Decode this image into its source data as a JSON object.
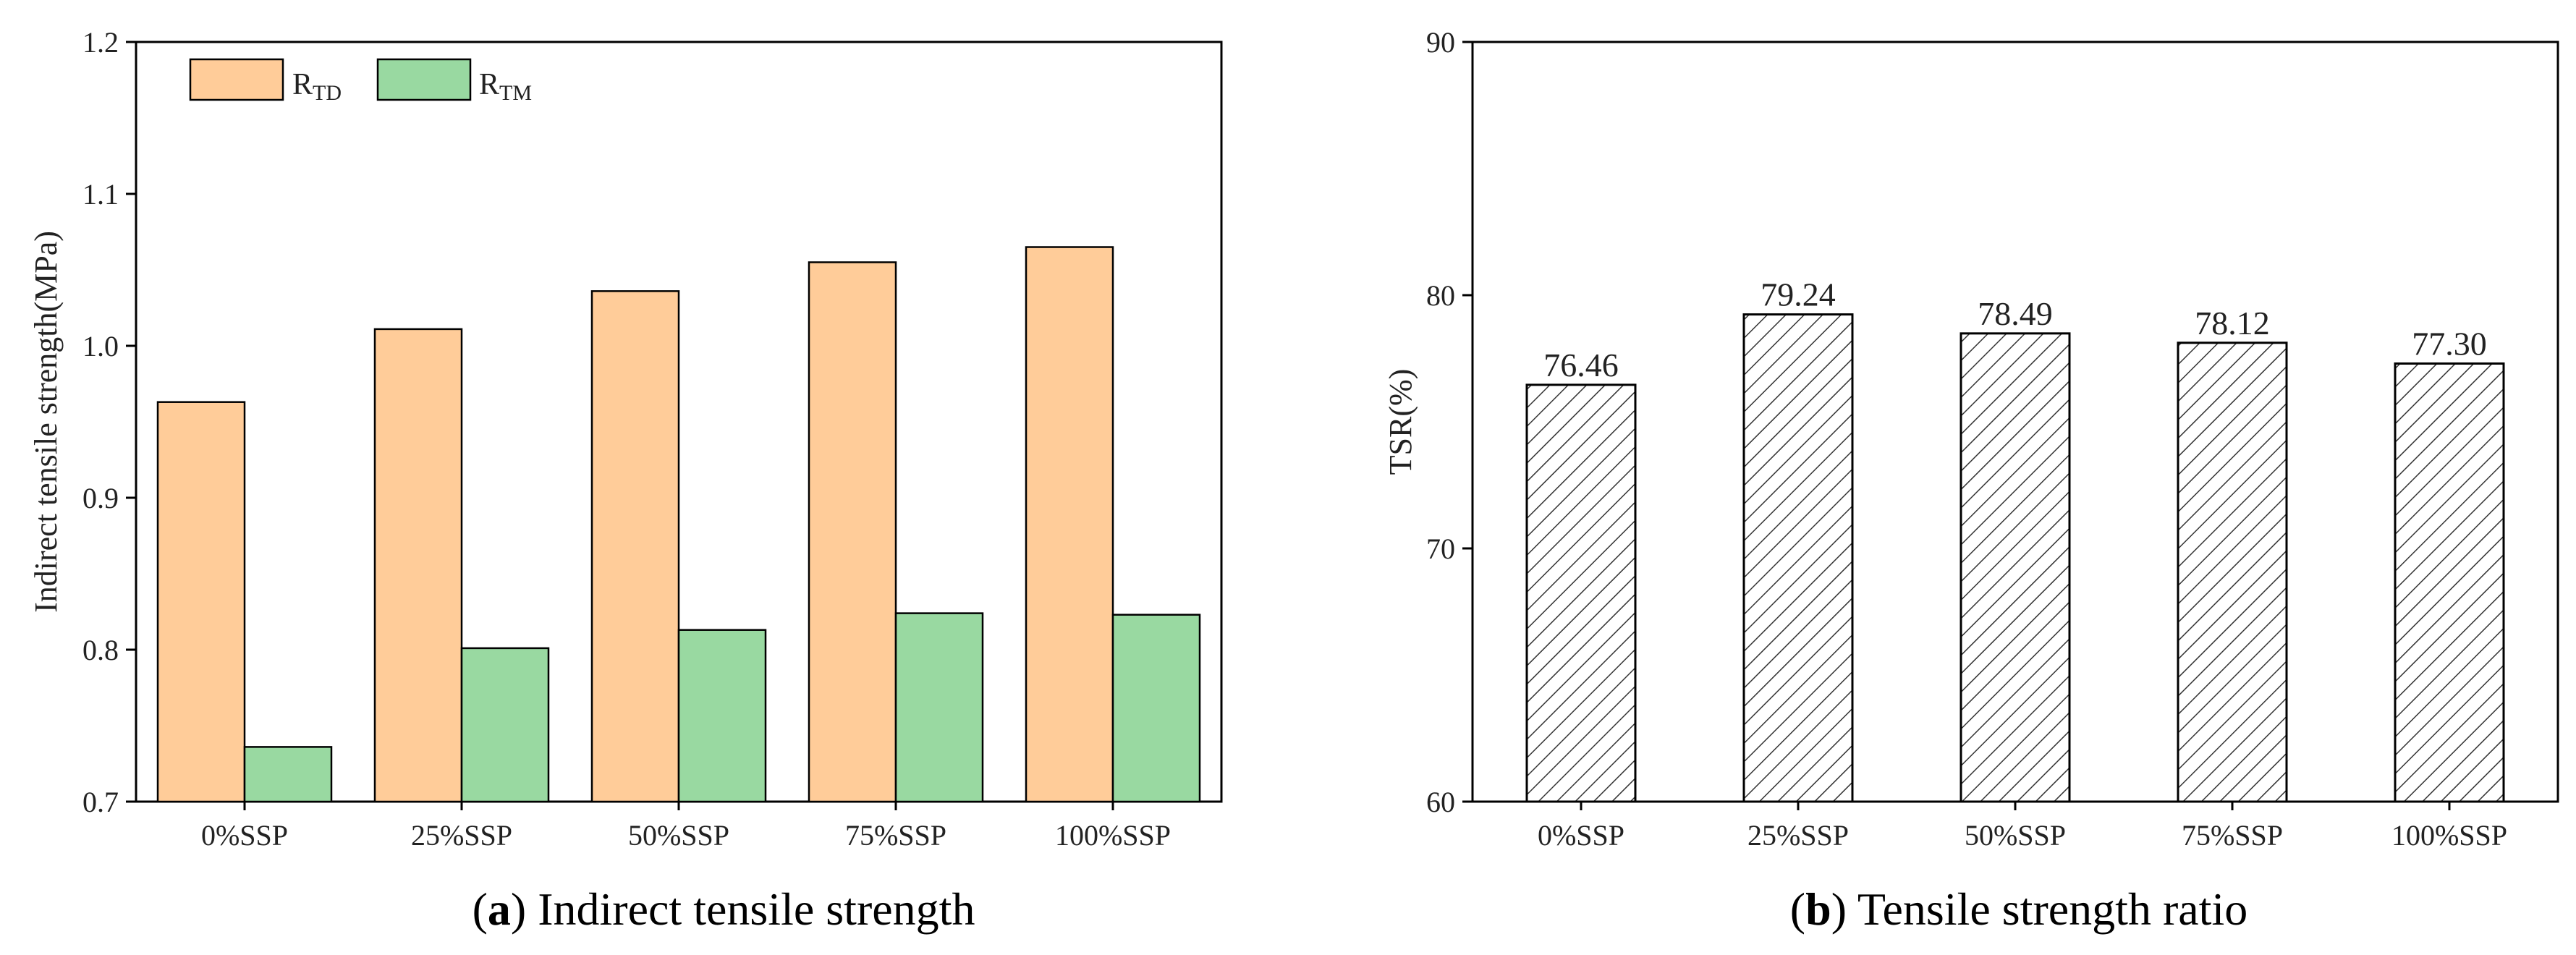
{
  "chart_data": [
    {
      "type": "bar",
      "title": "",
      "caption_letter": "a",
      "caption_text": ") Indirect tensile strength",
      "xlabel": "",
      "ylabel": "Indirect tensile strength(MPa)",
      "ylim": [
        0.7,
        1.2
      ],
      "yticks": [
        "0.7",
        "0.8",
        "0.9",
        "1.0",
        "1.1",
        "1.2"
      ],
      "categories": [
        "0%SSP",
        "25%SSP",
        "50%SSP",
        "75%SSP",
        "100%SSP"
      ],
      "series": [
        {
          "name": "R",
          "sub": "TD",
          "color": "#FFCC99",
          "values": [
            0.963,
            1.011,
            1.036,
            1.055,
            1.065
          ]
        },
        {
          "name": "R",
          "sub": "TM",
          "color": "#99D9A1",
          "values": [
            0.736,
            0.801,
            0.813,
            0.824,
            0.823
          ]
        }
      ],
      "legend": "top-left"
    },
    {
      "type": "bar",
      "title": "",
      "caption_letter": "b",
      "caption_text": ") Tensile strength ratio",
      "xlabel": "",
      "ylabel": "TSR(%)",
      "ylim": [
        60,
        90
      ],
      "yticks": [
        "60",
        "70",
        "80",
        "90"
      ],
      "categories": [
        "0%SSP",
        "25%SSP",
        "50%SSP",
        "75%SSP",
        "100%SSP"
      ],
      "values": [
        76.46,
        79.24,
        78.49,
        78.12,
        77.3
      ],
      "labels": [
        "76.46",
        "79.24",
        "78.49",
        "78.12",
        "77.30"
      ],
      "pattern": "diagonal-hatch"
    }
  ]
}
